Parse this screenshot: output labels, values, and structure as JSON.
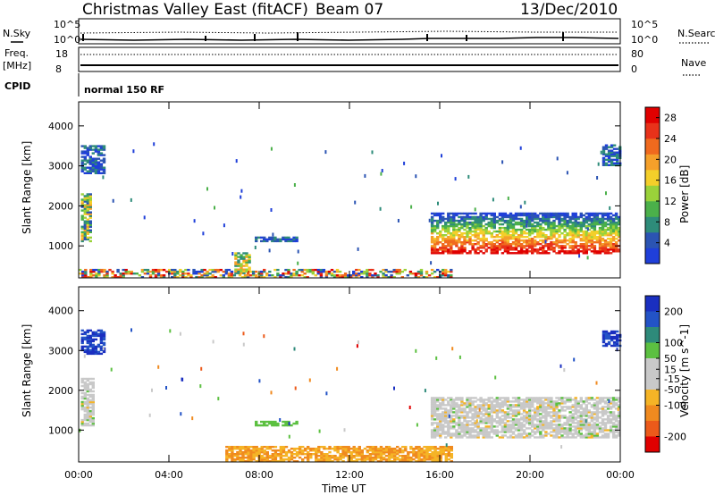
{
  "header": {
    "title": "Christmas Valley East (fitACF)",
    "beam": "Beam 07",
    "date": "13/Dec/2010"
  },
  "strips": {
    "nsky_label": "N.Sky",
    "nsearch_label": "N.Search",
    "freq_label": "Freq.",
    "freq_unit": "[MHz]",
    "nave_label": "Nave",
    "cpid_label": "CPID",
    "cpid_text": "normal 150 RF",
    "noise_ticks": [
      "10^5",
      "10^0"
    ],
    "freq_ticks": [
      "18",
      "8"
    ],
    "nave_ticks": [
      "80",
      "0"
    ]
  },
  "colors": {
    "power_scale": [
      "#1f3fd9",
      "#2b54b3",
      "#2e8c7a",
      "#4bb04a",
      "#9ad23a",
      "#f4cf2a",
      "#f5a02a",
      "#f06a1e",
      "#e8321a",
      "#e00000"
    ],
    "velocity_scale": [
      "#1a2fc0",
      "#2353c6",
      "#2e8a7a",
      "#5cc041",
      "#c9c9c9",
      "#c9c9c9",
      "#f5b426",
      "#f08a1f",
      "#ec5a1a",
      "#e00000"
    ]
  },
  "chart_data": [
    {
      "type": "heatmap",
      "name": "power-panel",
      "xlabel": "",
      "ylabel": "Slant Range [km]",
      "x_ticks": [
        "00:00",
        "04:00",
        "08:00",
        "12:00",
        "16:00",
        "20:00",
        "00:00"
      ],
      "y_ticks": [
        1000,
        2000,
        3000,
        4000
      ],
      "ylim": [
        200,
        4600
      ],
      "xlim_hours": [
        0,
        24
      ],
      "colorbar": {
        "label": "Power [dB]",
        "ticks": [
          4,
          8,
          12,
          16,
          20,
          24,
          28
        ],
        "range": [
          0,
          30
        ]
      },
      "regions": [
        {
          "t0": 0.1,
          "t1": 0.5,
          "r0": 1100,
          "r1": 2300,
          "level": "low-mid"
        },
        {
          "t0": 0.1,
          "t1": 1.1,
          "r0": 2800,
          "r1": 3500,
          "level": "low"
        },
        {
          "t0": 0.0,
          "t1": 16.5,
          "r0": 200,
          "r1": 400,
          "level": "near-range"
        },
        {
          "t0": 6.9,
          "t1": 7.6,
          "r0": 300,
          "r1": 800,
          "level": "mid"
        },
        {
          "t0": 7.8,
          "t1": 9.6,
          "r0": 1100,
          "r1": 1200,
          "level": "low"
        },
        {
          "t0": 15.6,
          "t1": 24.0,
          "r0": 800,
          "r1": 1800,
          "level": "high"
        },
        {
          "t0": 23.2,
          "t1": 24.0,
          "r0": 3000,
          "r1": 3500,
          "level": "low"
        }
      ]
    },
    {
      "type": "heatmap",
      "name": "velocity-panel",
      "xlabel": "Time UT",
      "ylabel": "Slant Range [km]",
      "x_ticks": [
        "00:00",
        "04:00",
        "08:00",
        "12:00",
        "16:00",
        "20:00",
        "00:00"
      ],
      "y_ticks": [
        1000,
        2000,
        3000,
        4000
      ],
      "ylim": [
        200,
        4600
      ],
      "xlim_hours": [
        0,
        24
      ],
      "colorbar": {
        "label": "Velocity [m s^-1]",
        "ticks": [
          200,
          100,
          50,
          15,
          -15,
          -50,
          -100,
          -200
        ],
        "range": [
          -250,
          250
        ]
      },
      "regions": [
        {
          "t0": 0.1,
          "t1": 0.6,
          "r0": 1100,
          "r1": 2300,
          "level": "near-zero"
        },
        {
          "t0": 0.1,
          "t1": 1.1,
          "r0": 2900,
          "r1": 3500,
          "level": "positive"
        },
        {
          "t0": 6.5,
          "t1": 16.5,
          "r0": 200,
          "r1": 600,
          "level": "negative"
        },
        {
          "t0": 7.8,
          "t1": 9.6,
          "r0": 1100,
          "r1": 1200,
          "level": "positive-low"
        },
        {
          "t0": 15.6,
          "t1": 24.0,
          "r0": 800,
          "r1": 1800,
          "level": "near-zero"
        },
        {
          "t0": 23.2,
          "t1": 24.0,
          "r0": 3100,
          "r1": 3500,
          "level": "positive"
        }
      ]
    }
  ]
}
